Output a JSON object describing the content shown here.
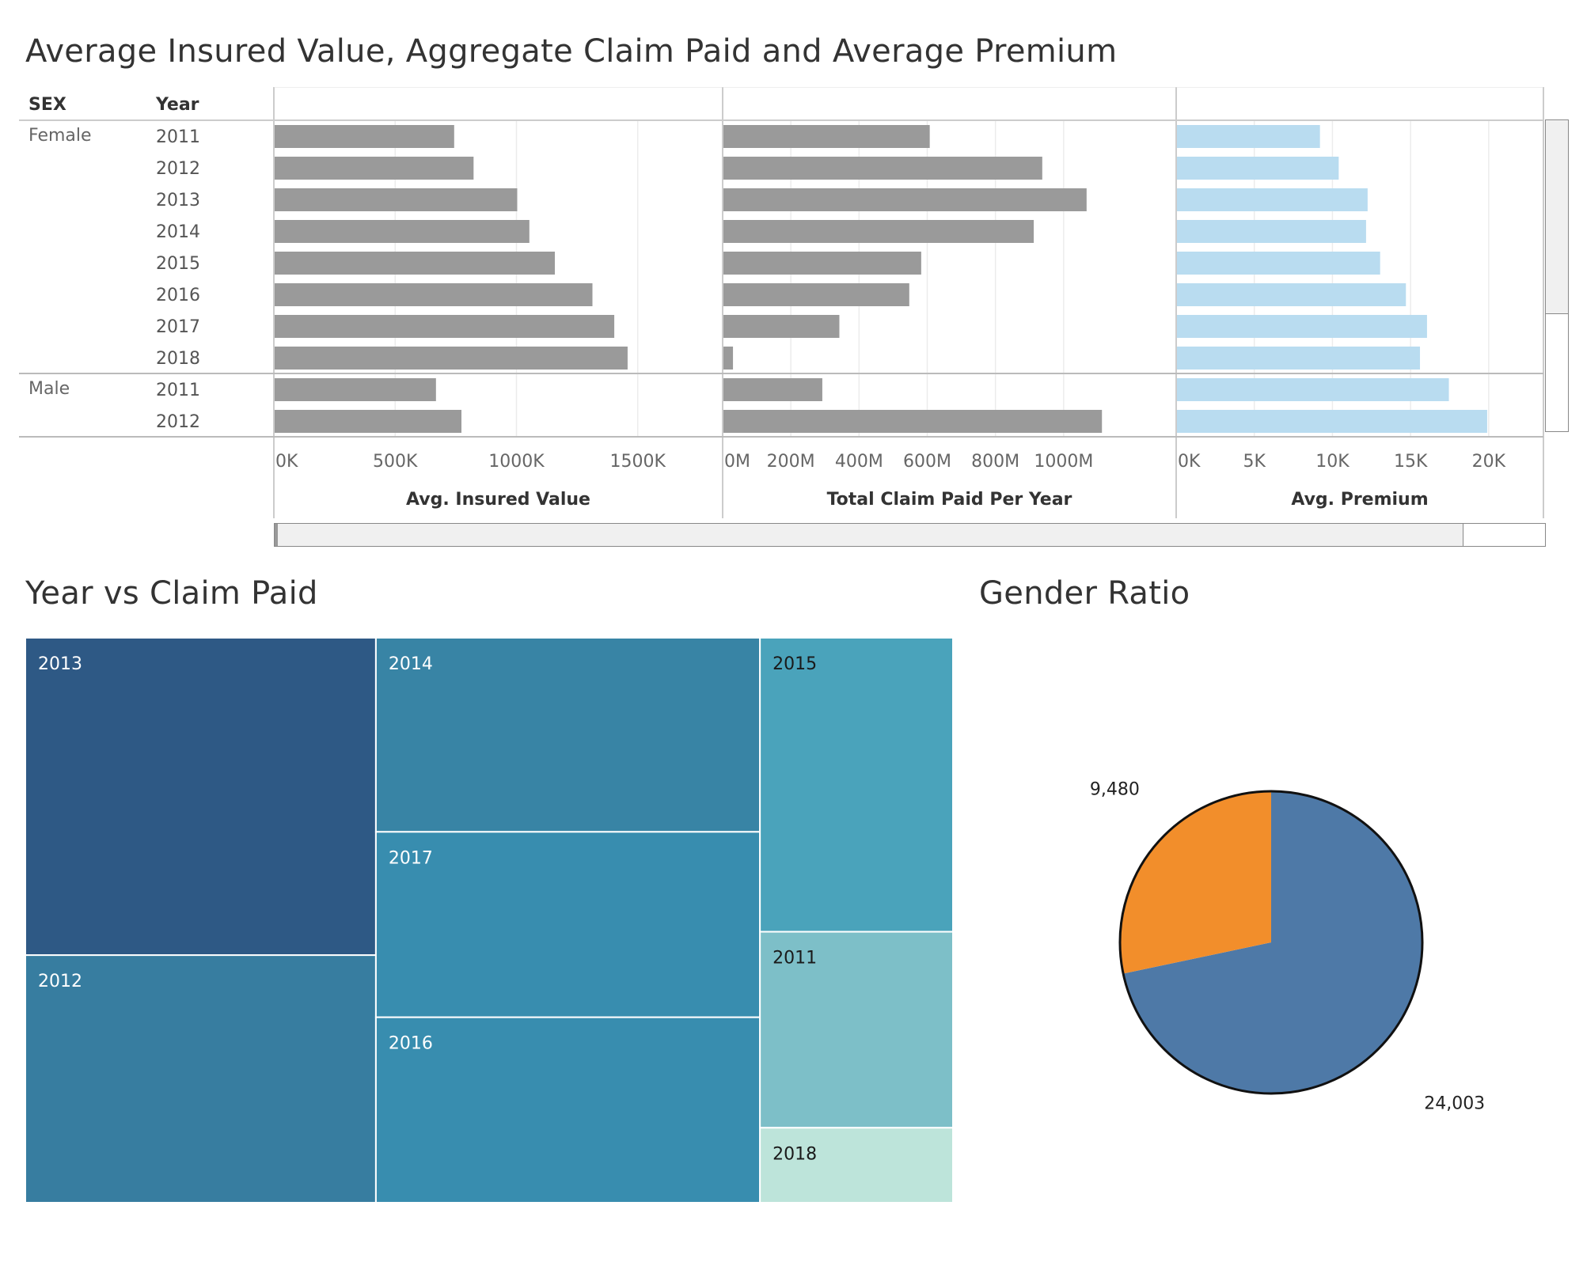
{
  "titles": {
    "top": "Average Insured Value, Aggregate Claim Paid and Average Premium",
    "treemap": "Year vs Claim Paid",
    "pie": "Gender Ratio"
  },
  "headers": {
    "sex": "SEX",
    "year": "Year"
  },
  "chart_data": [
    {
      "type": "bar",
      "title": "Average Insured Value, Aggregate Claim Paid and Average Premium",
      "rows": [
        {
          "sex": "Female",
          "year": "2011"
        },
        {
          "sex": "",
          "year": "2012"
        },
        {
          "sex": "",
          "year": "2013"
        },
        {
          "sex": "",
          "year": "2014"
        },
        {
          "sex": "",
          "year": "2015"
        },
        {
          "sex": "",
          "year": "2016"
        },
        {
          "sex": "",
          "year": "2017"
        },
        {
          "sex": "",
          "year": "2018"
        },
        {
          "sex": "Male",
          "year": "2011"
        },
        {
          "sex": "",
          "year": "2012"
        }
      ],
      "panels": [
        {
          "xlabel": "Avg. Insured Value",
          "xlim": [
            0,
            1850000
          ],
          "ticks": [
            0,
            500000,
            1000000,
            1500000
          ],
          "tick_labels": [
            "0K",
            "500K",
            "1000K",
            "1500K"
          ],
          "color": "#9a9a9a",
          "values": [
            740000,
            820000,
            1000000,
            1050000,
            1155000,
            1310000,
            1400000,
            1455000,
            665000,
            770000
          ]
        },
        {
          "xlabel": "Total Claim Paid Per Year",
          "xlim": [
            0,
            1330000000
          ],
          "ticks": [
            0,
            200000000,
            400000000,
            600000000,
            800000000,
            1000000000
          ],
          "tick_labels": [
            "0M",
            "200M",
            "400M",
            "600M",
            "800M",
            "1000M"
          ],
          "color": "#9a9a9a",
          "values": [
            605000000,
            935000000,
            1065000000,
            910000000,
            580000000,
            545000000,
            340000000,
            28000000,
            290000000,
            1110000000
          ]
        },
        {
          "xlabel": "Avg. Premium",
          "xlim": [
            0,
            23500
          ],
          "ticks": [
            0,
            5000,
            10000,
            15000,
            20000
          ],
          "tick_labels": [
            "0K",
            "5K",
            "10K",
            "15K",
            "20K"
          ],
          "color": "#b9dcf0",
          "values": [
            9150,
            10350,
            12200,
            12100,
            13000,
            14650,
            16000,
            15550,
            17400,
            19850
          ]
        }
      ]
    },
    {
      "type": "treemap",
      "title": "Year vs Claim Paid",
      "cells": [
        {
          "label": "2013",
          "value": 1.0,
          "color": "#2e5985",
          "text_color": "#ffffff"
        },
        {
          "label": "2012",
          "value": 0.78,
          "color": "#377da0",
          "text_color": "#ffffff"
        },
        {
          "label": "2014",
          "value": 0.67,
          "color": "#3884a5",
          "text_color": "#ffffff"
        },
        {
          "label": "2017",
          "value": 0.64,
          "color": "#388daf",
          "text_color": "#ffffff"
        },
        {
          "label": "2016",
          "value": 0.64,
          "color": "#388daf",
          "text_color": "#ffffff"
        },
        {
          "label": "2015",
          "value": 0.51,
          "color": "#4aa3bb",
          "text_color": "#1a1a1a"
        },
        {
          "label": "2011",
          "value": 0.34,
          "color": "#7dbfc8",
          "text_color": "#1a1a1a"
        },
        {
          "label": "2018",
          "value": 0.13,
          "color": "#bde4da",
          "text_color": "#1a1a1a"
        }
      ]
    },
    {
      "type": "pie",
      "title": "Gender Ratio",
      "slices": [
        {
          "label": "24,003",
          "value": 24003,
          "color": "#4e79a7"
        },
        {
          "label": "9,480",
          "value": 9480,
          "color": "#f28e2b"
        }
      ]
    }
  ]
}
